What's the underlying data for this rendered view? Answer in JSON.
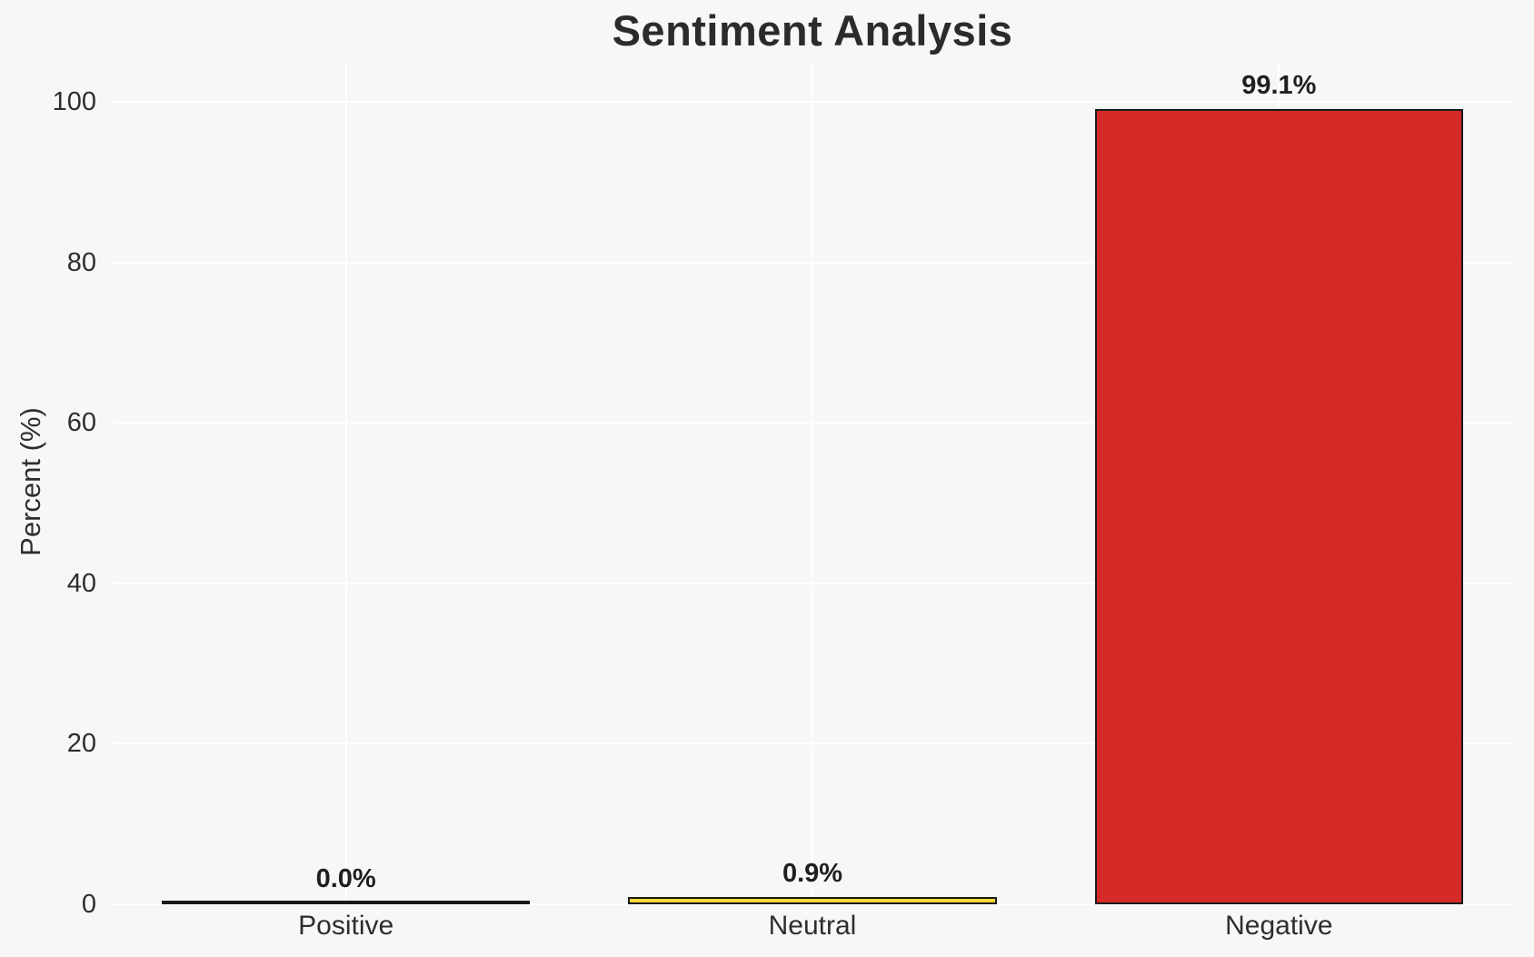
{
  "chart_data": {
    "type": "bar",
    "title": "Sentiment Analysis",
    "xlabel": "",
    "ylabel": "Percent (%)",
    "categories": [
      "Positive",
      "Neutral",
      "Negative"
    ],
    "values": [
      0.0,
      0.9,
      99.1
    ],
    "value_labels": [
      "0.0%",
      "0.9%",
      "99.1%"
    ],
    "bar_colors": [
      "#3a9e3a",
      "#f8d73c",
      "#d42a28"
    ],
    "bar_edge_color": "#1a1a1a",
    "yticks": [
      0,
      20,
      40,
      60,
      80,
      100
    ],
    "ylim": [
      0,
      105
    ],
    "grid": true,
    "grid_orientation": "both",
    "gridline_color": "#ffffff",
    "background_color": "#f7f7f7",
    "text_color": "#2e2e2e",
    "title_color": "#2b2b2b",
    "bar_width_fraction": 0.79,
    "legend": null
  }
}
